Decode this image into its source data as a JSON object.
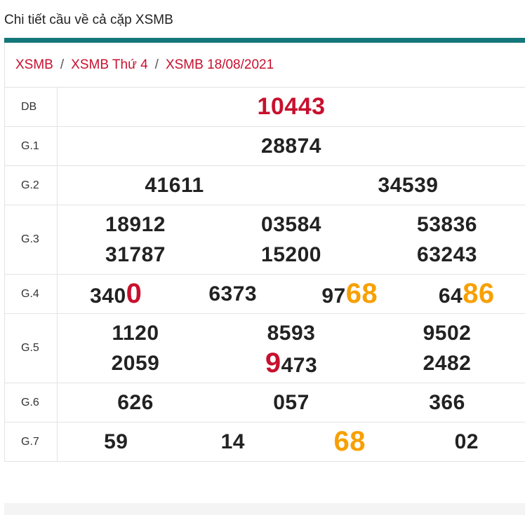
{
  "header": {
    "title": "Chi tiết cầu về cả cặp XSMB"
  },
  "breadcrumb": [
    "XSMB",
    "XSMB Thứ 4",
    "XSMB 18/08/2021"
  ],
  "breadcrumb_separator": "/",
  "table": {
    "rows": [
      {
        "label": "DB",
        "lines": [
          [
            [
              {
                "text": "10443",
                "color": "red"
              }
            ]
          ]
        ]
      },
      {
        "label": "G.1",
        "lines": [
          [
            [
              {
                "text": "28874"
              }
            ]
          ]
        ]
      },
      {
        "label": "G.2",
        "lines": [
          [
            [
              {
                "text": "41611"
              }
            ],
            [
              {
                "text": "34539"
              }
            ]
          ]
        ]
      },
      {
        "label": "G.3",
        "lines": [
          [
            [
              {
                "text": "18912"
              }
            ],
            [
              {
                "text": "03584"
              }
            ],
            [
              {
                "text": "53836"
              }
            ]
          ],
          [
            [
              {
                "text": "31787"
              }
            ],
            [
              {
                "text": "15200"
              }
            ],
            [
              {
                "text": "63243"
              }
            ]
          ]
        ]
      },
      {
        "label": "G.4",
        "lines": [
          [
            [
              {
                "text": "340"
              },
              {
                "text": "0",
                "color": "red"
              }
            ],
            [
              {
                "text": "6373"
              }
            ],
            [
              {
                "text": "97"
              },
              {
                "text": "68",
                "color": "orange"
              }
            ],
            [
              {
                "text": "64"
              },
              {
                "text": "86",
                "color": "orange"
              }
            ]
          ]
        ]
      },
      {
        "label": "G.5",
        "lines": [
          [
            [
              {
                "text": "1120"
              }
            ],
            [
              {
                "text": "8593"
              }
            ],
            [
              {
                "text": "9502"
              }
            ]
          ],
          [
            [
              {
                "text": "2059"
              }
            ],
            [
              {
                "text": "9",
                "color": "red"
              },
              {
                "text": "473"
              }
            ],
            [
              {
                "text": "2482"
              }
            ]
          ]
        ]
      },
      {
        "label": "G.6",
        "lines": [
          [
            [
              {
                "text": "626"
              }
            ],
            [
              {
                "text": "057"
              }
            ],
            [
              {
                "text": "366"
              }
            ]
          ]
        ]
      },
      {
        "label": "G.7",
        "lines": [
          [
            [
              {
                "text": "59"
              }
            ],
            [
              {
                "text": "14"
              }
            ],
            [
              {
                "text": "68",
                "color": "orange"
              }
            ],
            [
              {
                "text": "02"
              }
            ]
          ]
        ]
      }
    ]
  }
}
